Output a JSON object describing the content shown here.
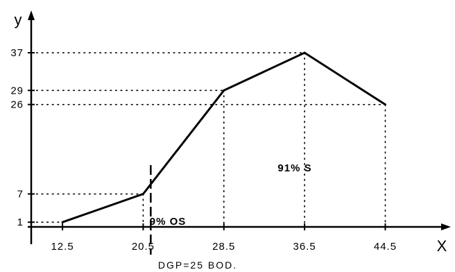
{
  "chart_data": {
    "type": "line",
    "xlabel": "x",
    "ylabel": "y",
    "x_ticks": [
      12.5,
      20.5,
      28.5,
      36.5,
      44.5
    ],
    "x_tick_labels": [
      "12.5",
      "20.5",
      "28.5",
      "36.5",
      "44.5"
    ],
    "y_ticks": [
      1,
      7,
      26,
      29,
      37
    ],
    "y_tick_labels": [
      "1",
      "7",
      "26",
      "29",
      "37"
    ],
    "xlim": [
      9.4,
      51
    ],
    "ylim": [
      0,
      46
    ],
    "series": [
      {
        "x": [
          12.5,
          20.5,
          28.5,
          36.5,
          44.5
        ],
        "y": [
          1,
          7,
          29,
          37,
          26
        ]
      }
    ],
    "reference_lines": "dotted from each point to both axes",
    "marker_line": {
      "x": 21.25,
      "style": "dashed"
    },
    "annotations": {
      "left_region": "9% OS",
      "right_region": "91% S",
      "marker_caption": "DGP=25 BOD."
    },
    "grid": false,
    "legend": "none",
    "colors": {
      "line": "#000000",
      "background": "#ffffff"
    }
  }
}
